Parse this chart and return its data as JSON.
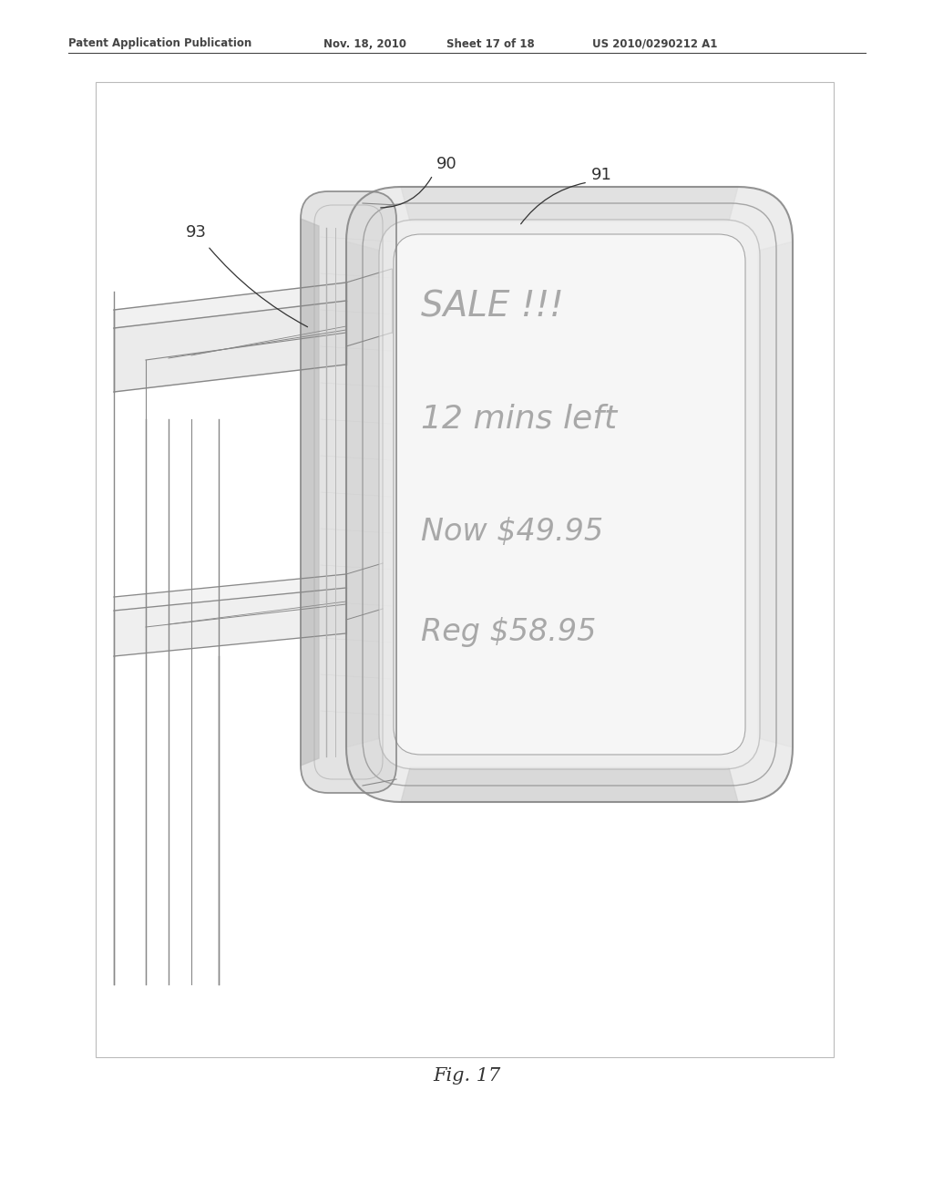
{
  "bg_color": "#ffffff",
  "header_text": "Patent Application Publication",
  "header_date": "Nov. 18, 2010",
  "header_sheet": "Sheet 17 of 18",
  "header_patent": "US 2010/0290212 A1",
  "fig_label": "Fig. 17",
  "display_lines": [
    "SALE !!!",
    "12 mins left",
    "Now $49.95",
    "Reg $58.95"
  ],
  "line_color": "#888888",
  "fill_light": "#e8e8e8",
  "fill_medium": "#d8d8d8",
  "fill_dark": "#cccccc",
  "header_color": "#444444",
  "label_color": "#333333",
  "text_color": "#aaaaaa"
}
